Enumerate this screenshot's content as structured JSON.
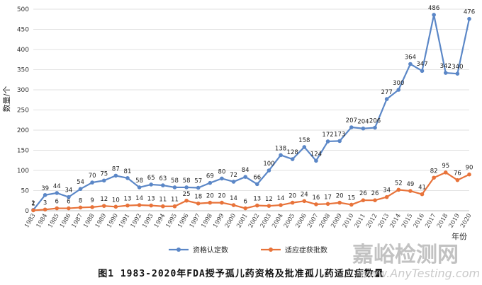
{
  "chart_data": {
    "type": "line",
    "x": [
      "1983",
      "1984",
      "1985",
      "1986",
      "1987",
      "1988",
      "1989",
      "1990",
      "1991",
      "1992",
      "1993",
      "1994",
      "1995",
      "1996",
      "1997",
      "1998",
      "1999",
      "2000",
      "2001",
      "2002",
      "2003",
      "2004",
      "2005",
      "2006",
      "2007",
      "2008",
      "2009",
      "2010",
      "2011",
      "2012",
      "2013",
      "2014",
      "2015",
      "2016",
      "2017",
      "2018",
      "2019",
      "2020"
    ],
    "series": [
      {
        "name": "资格认定数",
        "color": "#5b87c7",
        "values": [
          2,
          39,
          44,
          34,
          54,
          70,
          75,
          87,
          81,
          58,
          65,
          63,
          58,
          58,
          57,
          69,
          80,
          72,
          84,
          66,
          100,
          138,
          128,
          158,
          124,
          172,
          173,
          207,
          204,
          206,
          277,
          300,
          364,
          347,
          486,
          342,
          340,
          476
        ]
      },
      {
        "name": "适应症获批数",
        "color": "#e8733a",
        "values": [
          1,
          3,
          6,
          6,
          8,
          9,
          12,
          10,
          13,
          14,
          13,
          11,
          11,
          25,
          18,
          20,
          20,
          14,
          6,
          13,
          12,
          14,
          20,
          24,
          16,
          17,
          20,
          15,
          26,
          26,
          34,
          52,
          49,
          41,
          82,
          95,
          76,
          90
        ]
      }
    ],
    "ylabel": "数量/个",
    "xlabel": "年份",
    "ylim": [
      0,
      500
    ],
    "yticks": [
      0,
      50,
      100,
      150,
      200,
      250,
      300,
      350,
      400,
      450,
      500
    ],
    "grid": true,
    "legend": "bottom-center",
    "caption": "图1  1983-2020年FDA授予孤儿药资格及批准孤儿药适应症数量"
  },
  "watermark": {
    "title": "嘉峪检测网",
    "url": "www.AnyTesting.com"
  }
}
